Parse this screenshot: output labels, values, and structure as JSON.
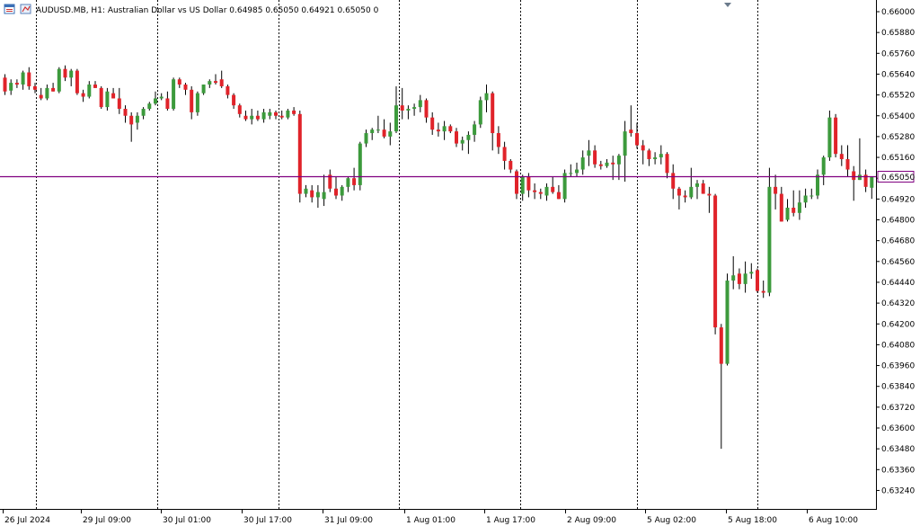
{
  "window": {
    "header_text": "AUDUSD.MB, H1:  Australian Dollar vs US Dollar  0.64985 0.65050 0.64921 0.65050  0",
    "icons": [
      "chart-window-icon",
      "symbol-icon"
    ]
  },
  "colors": {
    "bull": "#3c9a3c",
    "bear": "#e0232a",
    "wick": "#000000",
    "price_line": "#800080",
    "price_label_bg": "#ffffff",
    "price_label_text": "#e0232a",
    "grid": "#000000",
    "axis": "#000000"
  },
  "chart_data": {
    "type": "candlestick",
    "symbol": "AUDUSD.MB",
    "timeframe": "H1",
    "description": "Australian Dollar vs US Dollar",
    "current_price": "0.65050",
    "current_price_value": 0.6505,
    "ylim": [
      0.6317,
      0.6612
    ],
    "y_ticks": [
      "0.66000",
      "0.65880",
      "0.65760",
      "0.65640",
      "0.65520",
      "0.65400",
      "0.65280",
      "0.65160",
      "0.65040",
      "0.64920",
      "0.64800",
      "0.64680",
      "0.64560",
      "0.64440",
      "0.64320",
      "0.64200",
      "0.64080",
      "0.63960",
      "0.63840",
      "0.63720",
      "0.63600",
      "0.63480",
      "0.63360",
      "0.63240"
    ],
    "x_labels": [
      "26 Jul 2024",
      "29 Jul 09:00",
      "30 Jul 01:00",
      "30 Jul 17:00",
      "31 Jul 09:00",
      "1 Aug 01:00",
      "1 Aug 17:00",
      "2 Aug 09:00",
      "5 Aug 02:00",
      "5 Aug 18:00",
      "6 Aug 10:00"
    ],
    "vertical_separators": 7,
    "candles": [
      [
        0.6562,
        0.6564,
        0.6552,
        0.6554
      ],
      [
        0.65545,
        0.6561,
        0.6552,
        0.6559
      ],
      [
        0.6559,
        0.6561,
        0.6556,
        0.6558
      ],
      [
        0.6558,
        0.6566,
        0.6555,
        0.6565
      ],
      [
        0.6565,
        0.6568,
        0.6555,
        0.6557
      ],
      [
        0.6557,
        0.6559,
        0.6553,
        0.6555
      ],
      [
        0.6552,
        0.6556,
        0.6549,
        0.655
      ],
      [
        0.655,
        0.6558,
        0.6549,
        0.6556
      ],
      [
        0.6556,
        0.6559,
        0.6554,
        0.6554
      ],
      [
        0.6554,
        0.6568,
        0.6553,
        0.6567
      ],
      [
        0.6567,
        0.6569,
        0.656,
        0.6562
      ],
      [
        0.6562,
        0.6567,
        0.6557,
        0.6566
      ],
      [
        0.6566,
        0.6567,
        0.6552,
        0.6553
      ],
      [
        0.6553,
        0.6555,
        0.6548,
        0.6551
      ],
      [
        0.6551,
        0.656,
        0.655,
        0.6558
      ],
      [
        0.6558,
        0.656,
        0.6556,
        0.6556
      ],
      [
        0.6556,
        0.6557,
        0.6544,
        0.6545
      ],
      [
        0.6545,
        0.6556,
        0.6543,
        0.6554
      ],
      [
        0.6553,
        0.6556,
        0.655,
        0.655
      ],
      [
        0.655,
        0.6556,
        0.6541,
        0.6544
      ],
      [
        0.6544,
        0.6546,
        0.6536,
        0.654
      ],
      [
        0.654,
        0.6542,
        0.6525,
        0.6535
      ],
      [
        0.6536,
        0.6542,
        0.6532,
        0.654
      ],
      [
        0.654,
        0.6545,
        0.6538,
        0.6544
      ],
      [
        0.6544,
        0.6548,
        0.6543,
        0.6547
      ],
      [
        0.6547,
        0.6554,
        0.6546,
        0.655
      ],
      [
        0.655,
        0.6553,
        0.6549,
        0.6551
      ],
      [
        0.655,
        0.6554,
        0.6543,
        0.6544
      ],
      [
        0.6544,
        0.6562,
        0.6543,
        0.6561
      ],
      [
        0.6561,
        0.6562,
        0.6556,
        0.6558
      ],
      [
        0.6558,
        0.6559,
        0.6552,
        0.6555
      ],
      [
        0.6555,
        0.6557,
        0.6538,
        0.6542
      ],
      [
        0.6542,
        0.6554,
        0.654,
        0.6553
      ],
      [
        0.6553,
        0.6558,
        0.6552,
        0.6558
      ],
      [
        0.6558,
        0.6561,
        0.6556,
        0.656
      ],
      [
        0.656,
        0.6564,
        0.6558,
        0.6559
      ],
      [
        0.6561,
        0.6566,
        0.6556,
        0.6557
      ],
      [
        0.6557,
        0.6558,
        0.655,
        0.6552
      ],
      [
        0.6552,
        0.6553,
        0.6544,
        0.6546
      ],
      [
        0.6546,
        0.6547,
        0.6539,
        0.6541
      ],
      [
        0.654,
        0.6543,
        0.6537,
        0.6538
      ],
      [
        0.6538,
        0.6544,
        0.6535,
        0.654
      ],
      [
        0.654,
        0.6543,
        0.6537,
        0.6538
      ],
      [
        0.6538,
        0.6544,
        0.6536,
        0.6542
      ],
      [
        0.654,
        0.6544,
        0.6538,
        0.6542
      ],
      [
        0.6542,
        0.6543,
        0.6538,
        0.654
      ],
      [
        0.654,
        0.6543,
        0.6538,
        0.6539
      ],
      [
        0.6539,
        0.6544,
        0.6538,
        0.6543
      ],
      [
        0.6543,
        0.6545,
        0.654,
        0.6541
      ],
      [
        0.6541,
        0.6543,
        0.649,
        0.6495
      ],
      [
        0.6495,
        0.65,
        0.6493,
        0.6498
      ],
      [
        0.6497,
        0.65,
        0.649,
        0.6493
      ],
      [
        0.6493,
        0.65,
        0.6487,
        0.6496
      ],
      [
        0.6492,
        0.6506,
        0.6488,
        0.6496
      ],
      [
        0.6506,
        0.6509,
        0.6496,
        0.6498
      ],
      [
        0.6498,
        0.6505,
        0.6492,
        0.6494
      ],
      [
        0.6494,
        0.65,
        0.6491,
        0.6499
      ],
      [
        0.6499,
        0.6505,
        0.6496,
        0.6504
      ],
      [
        0.6504,
        0.651,
        0.6497,
        0.65
      ],
      [
        0.65,
        0.6525,
        0.6497,
        0.6524
      ],
      [
        0.6524,
        0.6532,
        0.6522,
        0.653
      ],
      [
        0.653,
        0.6533,
        0.6526,
        0.6532
      ],
      [
        0.6532,
        0.654,
        0.653,
        0.6532
      ],
      [
        0.6532,
        0.6538,
        0.6527,
        0.6528
      ],
      [
        0.6528,
        0.6536,
        0.6523,
        0.6531
      ],
      [
        0.6531,
        0.6557,
        0.653,
        0.6546
      ],
      [
        0.6546,
        0.6556,
        0.6538,
        0.6543
      ],
      [
        0.6543,
        0.6546,
        0.6538,
        0.6544
      ],
      [
        0.6544,
        0.6547,
        0.654,
        0.6545
      ],
      [
        0.6545,
        0.6552,
        0.6542,
        0.6549
      ],
      [
        0.6549,
        0.655,
        0.6536,
        0.6539
      ],
      [
        0.6539,
        0.6542,
        0.6529,
        0.6532
      ],
      [
        0.6532,
        0.6536,
        0.6528,
        0.6531
      ],
      [
        0.6531,
        0.6537,
        0.6526,
        0.6534
      ],
      [
        0.6534,
        0.6535,
        0.653,
        0.6531
      ],
      [
        0.6531,
        0.6533,
        0.6522,
        0.6524
      ],
      [
        0.6524,
        0.6528,
        0.652,
        0.6526
      ],
      [
        0.6526,
        0.6531,
        0.6518,
        0.6529
      ],
      [
        0.6529,
        0.6537,
        0.6525,
        0.6535
      ],
      [
        0.6535,
        0.6551,
        0.6533,
        0.6549
      ],
      [
        0.6549,
        0.6558,
        0.6542,
        0.6553
      ],
      [
        0.6553,
        0.6554,
        0.652,
        0.653
      ],
      [
        0.653,
        0.6534,
        0.6518,
        0.6522
      ],
      [
        0.6522,
        0.6525,
        0.6509,
        0.6514
      ],
      [
        0.6514,
        0.6515,
        0.6507,
        0.6509
      ],
      [
        0.6508,
        0.6509,
        0.6492,
        0.6495
      ],
      [
        0.6495,
        0.6506,
        0.6491,
        0.6505
      ],
      [
        0.6505,
        0.6507,
        0.6493,
        0.6497
      ],
      [
        0.6497,
        0.6501,
        0.6492,
        0.6496
      ],
      [
        0.6496,
        0.6498,
        0.6492,
        0.6495
      ],
      [
        0.6494,
        0.6501,
        0.6491,
        0.6499
      ],
      [
        0.6499,
        0.6505,
        0.6495,
        0.6496
      ],
      [
        0.6496,
        0.65,
        0.6492,
        0.6492
      ],
      [
        0.6492,
        0.6509,
        0.649,
        0.6507
      ],
      [
        0.6507,
        0.6512,
        0.6505,
        0.6507
      ],
      [
        0.6507,
        0.6513,
        0.6505,
        0.6509
      ],
      [
        0.6509,
        0.652,
        0.6506,
        0.6516
      ],
      [
        0.6517,
        0.6526,
        0.6511,
        0.652
      ],
      [
        0.652,
        0.6523,
        0.651,
        0.6512
      ],
      [
        0.6512,
        0.6514,
        0.6509,
        0.6511
      ],
      [
        0.6511,
        0.6515,
        0.651,
        0.6513
      ],
      [
        0.6513,
        0.6517,
        0.6503,
        0.6512
      ],
      [
        0.6512,
        0.6518,
        0.6503,
        0.6517
      ],
      [
        0.6517,
        0.6537,
        0.6502,
        0.6531
      ],
      [
        0.6532,
        0.6546,
        0.6528,
        0.653
      ],
      [
        0.653,
        0.6536,
        0.6521,
        0.6523
      ],
      [
        0.6523,
        0.6526,
        0.6512,
        0.652
      ],
      [
        0.652,
        0.6521,
        0.6511,
        0.6515
      ],
      [
        0.6515,
        0.6519,
        0.6512,
        0.6516
      ],
      [
        0.6516,
        0.6523,
        0.6512,
        0.6518
      ],
      [
        0.6518,
        0.6519,
        0.6504,
        0.6507
      ],
      [
        0.6507,
        0.6512,
        0.6492,
        0.6498
      ],
      [
        0.6498,
        0.6499,
        0.6486,
        0.6494
      ],
      [
        0.6494,
        0.6497,
        0.649,
        0.6493
      ],
      [
        0.6493,
        0.651,
        0.6492,
        0.6499
      ],
      [
        0.6499,
        0.6503,
        0.6492,
        0.6501
      ],
      [
        0.6501,
        0.6503,
        0.6495,
        0.6495
      ],
      [
        0.6495,
        0.6499,
        0.6484,
        0.6494
      ],
      [
        0.6494,
        0.6495,
        0.6414,
        0.6418
      ],
      [
        0.6418,
        0.642,
        0.6348,
        0.6397
      ],
      [
        0.6397,
        0.6449,
        0.6396,
        0.6445
      ],
      [
        0.6445,
        0.6459,
        0.644,
        0.6448
      ],
      [
        0.6449,
        0.6452,
        0.644,
        0.6443
      ],
      [
        0.6443,
        0.6456,
        0.6438,
        0.6449
      ],
      [
        0.6449,
        0.6455,
        0.6446,
        0.645
      ],
      [
        0.6451,
        0.6452,
        0.6438,
        0.6439
      ],
      [
        0.6439,
        0.6445,
        0.6435,
        0.6438
      ],
      [
        0.6438,
        0.651,
        0.6436,
        0.6499
      ],
      [
        0.6499,
        0.6506,
        0.6486,
        0.6495
      ],
      [
        0.6495,
        0.6499,
        0.6479,
        0.6479
      ],
      [
        0.648,
        0.6492,
        0.6479,
        0.6487
      ],
      [
        0.6487,
        0.6497,
        0.6482,
        0.6484
      ],
      [
        0.6484,
        0.6497,
        0.648,
        0.649
      ],
      [
        0.649,
        0.6498,
        0.6487,
        0.6494
      ],
      [
        0.6494,
        0.6498,
        0.6492,
        0.6494
      ],
      [
        0.6494,
        0.6509,
        0.6492,
        0.6506
      ],
      [
        0.6506,
        0.6517,
        0.65,
        0.6516
      ],
      [
        0.6516,
        0.6543,
        0.6514,
        0.6539
      ],
      [
        0.6539,
        0.6541,
        0.6516,
        0.6518
      ],
      [
        0.6518,
        0.6523,
        0.6511,
        0.6515
      ],
      [
        0.6515,
        0.6523,
        0.6505,
        0.6509
      ],
      [
        0.6508,
        0.6511,
        0.6491,
        0.6503
      ],
      [
        0.6503,
        0.6527,
        0.6503,
        0.6506
      ],
      [
        0.6506,
        0.6509,
        0.6496,
        0.6499
      ],
      [
        0.64985,
        0.6505,
        0.64921,
        0.6505
      ]
    ]
  }
}
